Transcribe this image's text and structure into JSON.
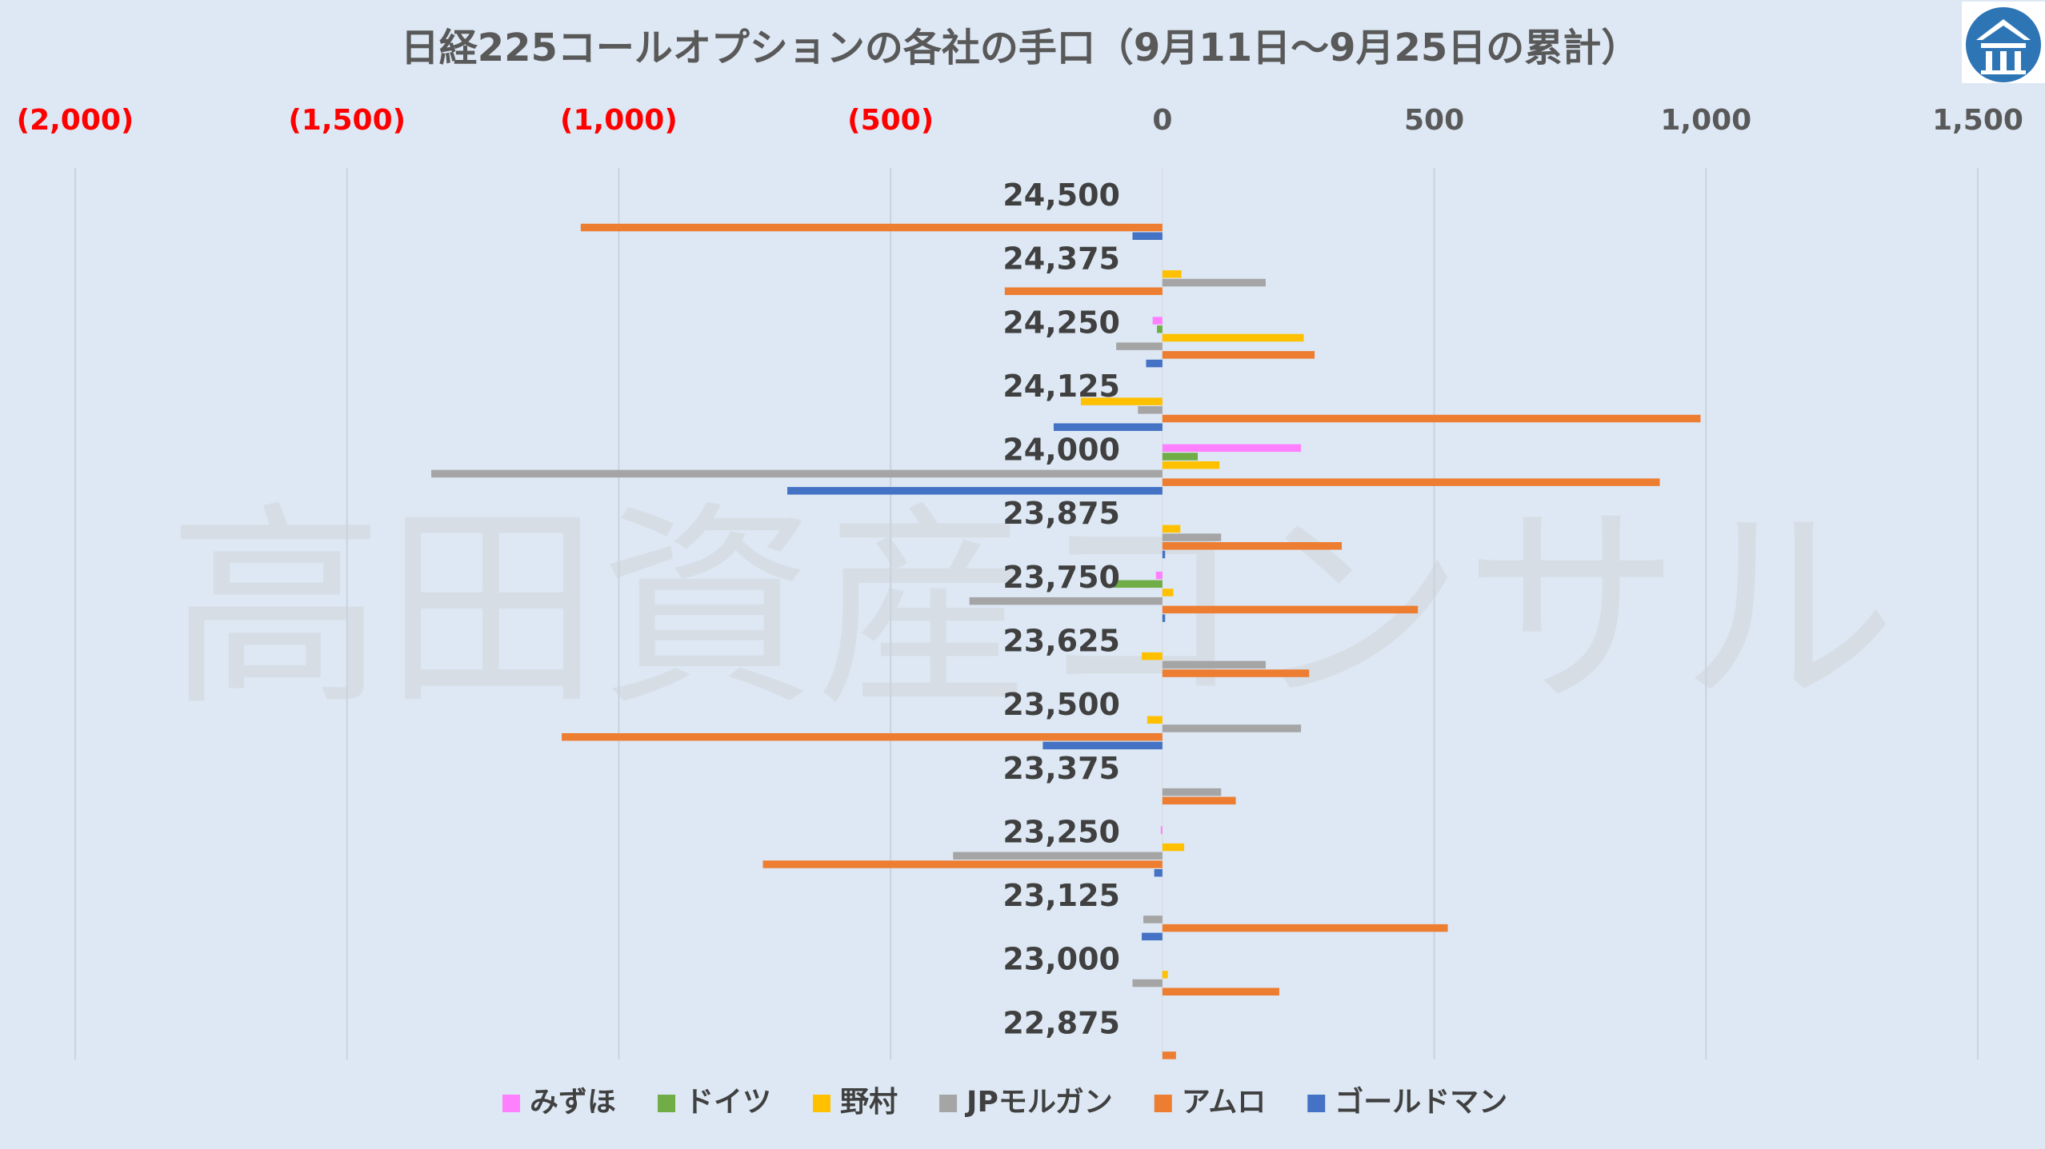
{
  "chart_data": {
    "type": "bar",
    "orientation": "horizontal",
    "title": "日経225コールオプションの各社の手口（9月11日～9月25日の累計）",
    "watermark": "高田資産コンサル",
    "xlim": [
      -2000,
      1500
    ],
    "x_ticks": [
      {
        "value": -2000,
        "label": "(2,000)"
      },
      {
        "value": -1500,
        "label": "(1,500)"
      },
      {
        "value": -1000,
        "label": "(1,000)"
      },
      {
        "value": -500,
        "label": "(500)"
      },
      {
        "value": 0,
        "label": "0"
      },
      {
        "value": 500,
        "label": "500"
      },
      {
        "value": 1000,
        "label": "1,000"
      },
      {
        "value": 1500,
        "label": "1,500"
      }
    ],
    "grid": true,
    "legend_position": "bottom",
    "categories": [
      "24,500",
      "24,375",
      "24,250",
      "24,125",
      "24,000",
      "23,875",
      "23,750",
      "23,625",
      "23,500",
      "23,375",
      "23,250",
      "23,125",
      "23,000",
      "22,875"
    ],
    "series": [
      {
        "name": "みずほ",
        "color": "#ff80ff",
        "values": [
          0,
          0,
          -18,
          0,
          255,
          0,
          -12,
          0,
          0,
          0,
          -3,
          0,
          0,
          0
        ]
      },
      {
        "name": "ドイツ",
        "color": "#70ad47",
        "values": [
          0,
          0,
          -10,
          0,
          65,
          0,
          -90,
          0,
          0,
          0,
          0,
          0,
          0,
          0
        ]
      },
      {
        "name": "野村",
        "color": "#ffc000",
        "values": [
          0,
          35,
          260,
          -150,
          105,
          33,
          20,
          -38,
          -28,
          0,
          40,
          0,
          10,
          0
        ]
      },
      {
        "name": "JPモルガン",
        "color": "#a5a5a5",
        "values": [
          0,
          190,
          -85,
          -45,
          -1345,
          108,
          -355,
          190,
          255,
          108,
          -385,
          -35,
          -55,
          0
        ]
      },
      {
        "name": "アムロ",
        "color": "#ed7d31",
        "values": [
          -1070,
          -290,
          280,
          990,
          915,
          330,
          470,
          270,
          -1105,
          135,
          -735,
          525,
          215,
          25
        ]
      },
      {
        "name": "ゴールドマン",
        "color": "#4472c4",
        "values": [
          -55,
          0,
          -30,
          -200,
          -690,
          5,
          5,
          0,
          -220,
          0,
          -15,
          -38,
          0,
          0
        ]
      }
    ]
  }
}
